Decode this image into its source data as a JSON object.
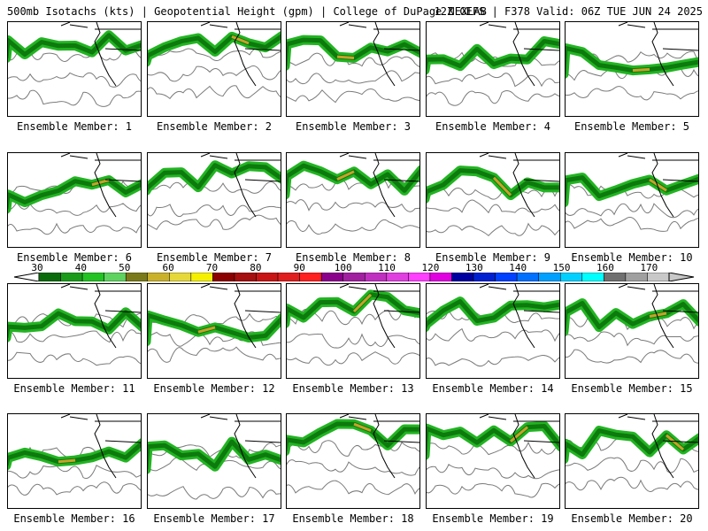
{
  "header": {
    "left": "500mb Isotachs (kts) | Geopotential Height (gpm) | College of DuPage NEXLAB",
    "right": "12Z GEFS | F378 Valid: 06Z TUE JUN 24 2025"
  },
  "panels": [
    {
      "label": "Ensemble Member: 1"
    },
    {
      "label": "Ensemble Member: 2"
    },
    {
      "label": "Ensemble Member: 3"
    },
    {
      "label": "Ensemble Member: 4"
    },
    {
      "label": "Ensemble Member: 5"
    },
    {
      "label": "Ensemble Member: 6"
    },
    {
      "label": "Ensemble Member: 7"
    },
    {
      "label": "Ensemble Member: 8"
    },
    {
      "label": "Ensemble Member: 9"
    },
    {
      "label": "Ensemble Member: 10"
    },
    {
      "label": "Ensemble Member: 11"
    },
    {
      "label": "Ensemble Member: 12"
    },
    {
      "label": "Ensemble Member: 13"
    },
    {
      "label": "Ensemble Member: 14"
    },
    {
      "label": "Ensemble Member: 15"
    },
    {
      "label": "Ensemble Member: 16"
    },
    {
      "label": "Ensemble Member: 17"
    },
    {
      "label": "Ensemble Member: 18"
    },
    {
      "label": "Ensemble Member: 19"
    },
    {
      "label": "Ensemble Member: 20"
    }
  ],
  "colorbar": {
    "tick_labels": [
      "30",
      "40",
      "50",
      "60",
      "70",
      "80",
      "90",
      "100",
      "110",
      "120",
      "130",
      "140",
      "150",
      "160",
      "170"
    ],
    "colors": [
      "#0a6b0a",
      "#1a9c1a",
      "#22c322",
      "#5fd35f",
      "#7a7a1a",
      "#c9b12a",
      "#e6d83a",
      "#f5f000",
      "#8b0000",
      "#a50f0f",
      "#c81414",
      "#e01e1e",
      "#ff2020",
      "#8b008b",
      "#a020a0",
      "#c030c0",
      "#e040e0",
      "#ff40ff",
      "#e000e0",
      "#0000a0",
      "#0020d0",
      "#0040ff",
      "#0070ff",
      "#00a0ff",
      "#00d0ff",
      "#00ffff",
      "#707070",
      "#a0a0a0",
      "#c8c8c8"
    ]
  }
}
